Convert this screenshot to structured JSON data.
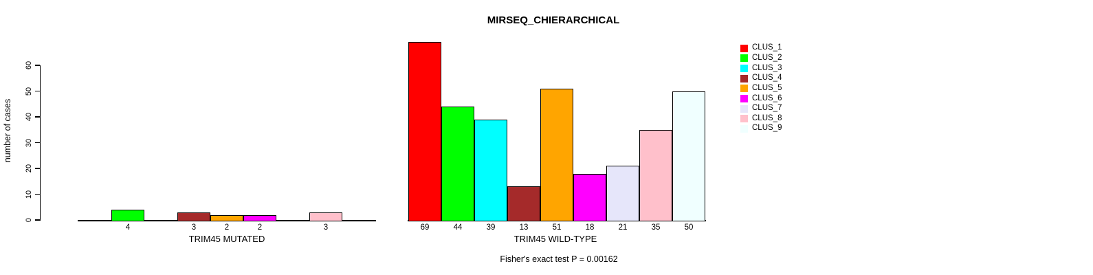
{
  "chart_data": {
    "type": "bar",
    "title": "MIRSEQ_CHIERARCHICAL",
    "ylabel": "number of cases",
    "ylim": [
      0,
      60
    ],
    "yticks": [
      0,
      10,
      20,
      30,
      40,
      50,
      60
    ],
    "grid": false,
    "legend_position": "right",
    "legend": [
      "CLUS_1",
      "CLUS_2",
      "CLUS_3",
      "CLUS_4",
      "CLUS_5",
      "CLUS_6",
      "CLUS_7",
      "CLUS_8",
      "CLUS_9"
    ],
    "colors": [
      "#FF0000",
      "#00FF00",
      "#00FFFF",
      "#A52A2A",
      "#FFA500",
      "#FF00FF",
      "#E6E6FA",
      "#FFC0CB",
      "#F0FFFF"
    ],
    "panels": [
      {
        "xlabel": "TRIM45 MUTATED",
        "values": [
          0,
          4,
          0,
          3,
          2,
          2,
          0,
          3,
          0
        ],
        "bar_labels": [
          "",
          "4",
          "",
          "3",
          "2",
          "2",
          "",
          "3",
          ""
        ]
      },
      {
        "xlabel": "TRIM45 WILD-TYPE",
        "values": [
          69,
          44,
          39,
          13,
          51,
          18,
          21,
          35,
          50
        ],
        "bar_labels": [
          "69",
          "44",
          "39",
          "13",
          "51",
          "18",
          "21",
          "35",
          "50"
        ]
      }
    ],
    "annotation": "Fisher's exact test P = 0.00162"
  }
}
